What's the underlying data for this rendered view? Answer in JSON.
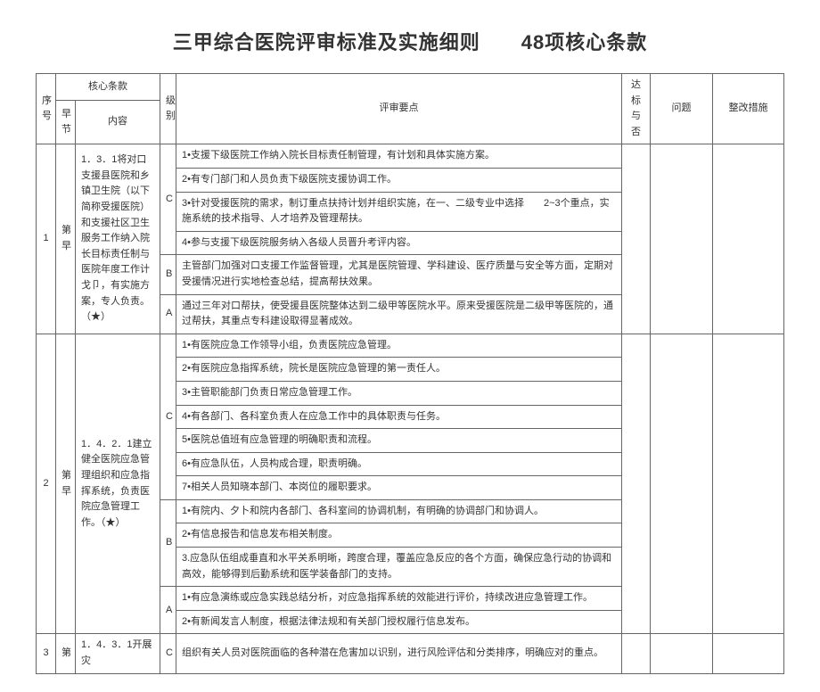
{
  "title": "三甲综合医院评审标准及实施细则　　48项核心条款",
  "header": {
    "seq": "序号",
    "core_group": "核心条款",
    "chapter": "早节",
    "content": "内容",
    "level": "级别",
    "points": "评审要点",
    "pass": "达标与否",
    "issue": "问题",
    "fix": "整改措施"
  },
  "rows": [
    {
      "seq": "1",
      "chapter": "第早",
      "content": "1．3．1将对口支援县医院和乡镇卫生院（以下简称受援医院）和支援社区卫生服务工作纳入院长目标责任制与医院年度工作计戈卩，有实施方案，专人负责。（★）",
      "levels": [
        {
          "level": "C",
          "points": [
            "1•支援下级医院工作纳入院长目标责任制管理，有计划和具体实施方案。",
            "2•有专门部门和人员负责下级医院支援协调工作。",
            "3•针对受援医院的需求，制订重点扶持计划并组织实施，在一、二级专业中选择　　2~3个重点，实施系统的技术指导、人才培养及管理帮扶。",
            "4•参与支援下级医院服务纳入各级人员晋升考评内容。"
          ]
        },
        {
          "level": "B",
          "points": [
            "主管部门加强对口支援工作监督管理，尤其是医院管理、学科建设、医疗质量与安全等方面，定期对受援情况进行实地检查总结，提高帮扶效果。"
          ]
        },
        {
          "level": "A",
          "points": [
            "通过三年对口帮扶，使受援县医院整体达到二级甲等医院水平。原来受援医院是二级甲等医院的，通过帮扶，其重点专科建设取得显著成效。"
          ]
        }
      ]
    },
    {
      "seq": "2",
      "chapter": "第早",
      "content": "1．4．2．1建立健全医院应急管理组织和应急指挥系统，负责医院应急管理工作。（★）",
      "levels": [
        {
          "level": "C",
          "points": [
            "1•有医院应急工作领导小组，负责医院应急管理。",
            "2•有医院应急指挥系统，院长是医院应急管理的第一责任人。",
            "3•主管职能部门负责日常应急管理工作。",
            "4•有各部门、各科室负责人在应急工作中的具体职责与任务。",
            "5•医院总值班有应急管理的明确职责和流程。",
            "6•有应急队伍，人员构成合理，职责明确。",
            "7•相关人员知晓本部门、本岗位的履职要求。"
          ]
        },
        {
          "level": "B",
          "points": [
            "1•有院内、夕卜和院内各部门、各科室间的协调机制，有明确的协调部门和协调人。",
            "2•有信息报告和信息发布相关制度。",
            "3.应急队伍组成垂直和水平关系明晰，跨度合理，覆盖应急反应的各个方面，确保应急行动的协调和高效，能够得到后勤系统和医学装备部门的支持。"
          ]
        },
        {
          "level": "A",
          "points": [
            "1•有应急演练或应急实践总结分析，对应急指挥系统的效能进行评价，持续改进应急管理工作。",
            "2•有新闻发言人制度，根据法律法规和有关部门授权履行信息发布。"
          ]
        }
      ]
    },
    {
      "seq": "3",
      "chapter": "第",
      "content": "1．4．3．1开展灾",
      "levels": [
        {
          "level": "C",
          "points": [
            "组织有关人员对医院面临的各种潜在危害加以识别，进行风险评估和分类排序，明确应对的重点。"
          ]
        }
      ]
    }
  ]
}
